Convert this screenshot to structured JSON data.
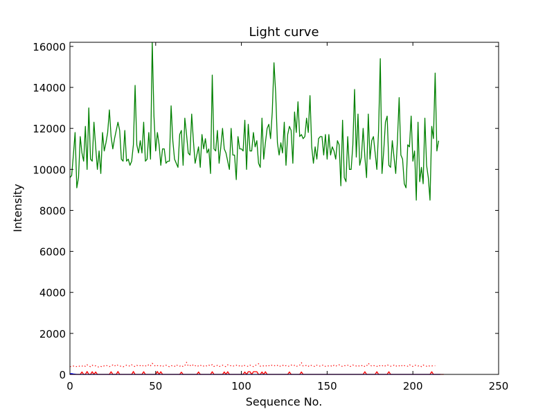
{
  "chart_data": {
    "type": "line",
    "title": "Light curve",
    "xlabel": "Sequence No.",
    "ylabel": "Intensity",
    "xlim": [
      0,
      250
    ],
    "ylim": [
      0,
      16200
    ],
    "x_ticks": [
      "0",
      "50",
      "100",
      "150",
      "200",
      "250"
    ],
    "y_ticks": [
      "0",
      "2000",
      "4000",
      "6000",
      "8000",
      "10000",
      "12000",
      "14000",
      "16000"
    ],
    "x_tick_values": [
      0,
      50,
      100,
      150,
      200,
      250
    ],
    "y_tick_values": [
      0,
      2000,
      4000,
      6000,
      8000,
      10000,
      12000,
      14000,
      16000
    ],
    "grid": false,
    "colors": {
      "green": "#008000",
      "red": "#ff0000",
      "blue": "#0000ff"
    },
    "series": [
      {
        "style": "solid",
        "color": "green",
        "x_start": 0,
        "values": [
          9600,
          9700,
          10700,
          11800,
          9100,
          9600,
          11600,
          10800,
          10400,
          12100,
          10000,
          13000,
          10500,
          10400,
          12300,
          11100,
          10000,
          10900,
          9800,
          11800,
          10900,
          11300,
          11800,
          12900,
          11600,
          11000,
          11500,
          11900,
          12300,
          11900,
          10500,
          10400,
          11900,
          10400,
          10500,
          10200,
          10400,
          11200,
          14100,
          11200,
          10800,
          11400,
          10800,
          12300,
          10400,
          10500,
          11800,
          10500,
          16200,
          12600,
          10900,
          11800,
          11200,
          10200,
          11000,
          11000,
          10300,
          10400,
          10400,
          13100,
          11400,
          10500,
          10300,
          10100,
          11700,
          11900,
          10200,
          12500,
          11700,
          10800,
          10700,
          12700,
          11400,
          10300,
          10700,
          11100,
          10100,
          11700,
          11000,
          11500,
          10800,
          11000,
          9800,
          14600,
          11000,
          10900,
          11900,
          10300,
          11100,
          12000,
          11000,
          10800,
          10400,
          10000,
          12000,
          10700,
          10700,
          9500,
          11600,
          11000,
          11000,
          10900,
          12400,
          10000,
          12200,
          10900,
          10900,
          11800,
          11100,
          11400,
          10300,
          10100,
          12500,
          10500,
          11300,
          12000,
          12200,
          11500,
          12800,
          15200,
          13700,
          11300,
          10700,
          11300,
          10800,
          12300,
          10200,
          11700,
          12100,
          11900,
          10300,
          12800,
          11800,
          13300,
          11600,
          11700,
          11500,
          11600,
          12500,
          11800,
          13600,
          11100,
          10300,
          11100,
          10500,
          11500,
          11600,
          11600,
          10700,
          11700,
          10500,
          11700,
          10700,
          11100,
          10900,
          10500,
          11400,
          11200,
          9200,
          12400,
          9600,
          9400,
          11600,
          10000,
          10000,
          11200,
          13900,
          10600,
          12700,
          10200,
          10600,
          12000,
          10600,
          9600,
          12700,
          10500,
          11400,
          11600,
          10800,
          10000,
          11900,
          15400,
          9800,
          10900,
          12300,
          12600,
          10200,
          10100,
          11400,
          10600,
          9800,
          11400,
          13500,
          10700,
          10500,
          9300,
          9100,
          11200,
          11100,
          12600,
          10400,
          10900,
          8500,
          12300,
          9400,
          10100,
          9300,
          12500,
          10200,
          9600,
          8500,
          12100,
          11500,
          14700,
          10900,
          11400
        ]
      },
      {
        "style": "dotted",
        "color": "red",
        "x_start": 0,
        "values": [
          380,
          390,
          410,
          370,
          390,
          420,
          380,
          400,
          440,
          390,
          470,
          410,
          380,
          450,
          400,
          420,
          380,
          350,
          390,
          370,
          420,
          450,
          410,
          380,
          430,
          460,
          400,
          480,
          440,
          420,
          390,
          370,
          410,
          450,
          430,
          400,
          470,
          420,
          380,
          440,
          410,
          430,
          390,
          450,
          420,
          400,
          480,
          420,
          540,
          460,
          390,
          430,
          400,
          420,
          380,
          440,
          450,
          400,
          380,
          430,
          410,
          390,
          470,
          420,
          400,
          440,
          380,
          430,
          590,
          410,
          440,
          400,
          480,
          430,
          380,
          420,
          460,
          390,
          410,
          440,
          400,
          450,
          420,
          480,
          390,
          410,
          440,
          380,
          420,
          450,
          400,
          380,
          470,
          430,
          420,
          390,
          440,
          450,
          400,
          420,
          380,
          460,
          430,
          410,
          390,
          450,
          420,
          380,
          440,
          460,
          520,
          400,
          430,
          410,
          390,
          450,
          420,
          470,
          430,
          410,
          460,
          440,
          380,
          420,
          450,
          400,
          430,
          390,
          410,
          460,
          420,
          440,
          380,
          430,
          450,
          570,
          410,
          420,
          440,
          390,
          460,
          430,
          410,
          380,
          450,
          420,
          400,
          440,
          460,
          390,
          420,
          410,
          430,
          380,
          450,
          400,
          440,
          470,
          410,
          390,
          430,
          420,
          450,
          380,
          400,
          460,
          430,
          410,
          440,
          390,
          420,
          450,
          380,
          410,
          540,
          460,
          400,
          430,
          420,
          390,
          450,
          410,
          440,
          380,
          420,
          470,
          430,
          400,
          410,
          450,
          390,
          440,
          420,
          380,
          460,
          430,
          410,
          400,
          480,
          420,
          390,
          450,
          440,
          410,
          430,
          380,
          460,
          420,
          400,
          440,
          390,
          410,
          430,
          420
        ]
      },
      {
        "style": "solid",
        "color": "red",
        "x_start": 0,
        "values": [
          0,
          0,
          0,
          0,
          0,
          0,
          0,
          120,
          0,
          0,
          140,
          0,
          0,
          130,
          0,
          120,
          0,
          0,
          0,
          0,
          0,
          0,
          0,
          0,
          130,
          0,
          0,
          0,
          140,
          0,
          0,
          0,
          0,
          0,
          0,
          0,
          0,
          140,
          0,
          0,
          0,
          0,
          0,
          130,
          0,
          0,
          0,
          0,
          0,
          0,
          0,
          140,
          0,
          130,
          0,
          0,
          0,
          0,
          0,
          0,
          0,
          0,
          0,
          0,
          0,
          110,
          0,
          0,
          0,
          0,
          0,
          0,
          0,
          0,
          0,
          120,
          0,
          0,
          0,
          0,
          0,
          0,
          0,
          130,
          0,
          0,
          0,
          0,
          0,
          0,
          120,
          0,
          130,
          0,
          0,
          0,
          0,
          0,
          0,
          0,
          0,
          0,
          120,
          0,
          130,
          130,
          0,
          130,
          130,
          130,
          0,
          0,
          120,
          0,
          130,
          0,
          0,
          0,
          0,
          0,
          0,
          0,
          0,
          0,
          0,
          0,
          0,
          0,
          120,
          0,
          0,
          0,
          0,
          0,
          0,
          120,
          0,
          0,
          0,
          0,
          0,
          0,
          0,
          0,
          0,
          0,
          0,
          0,
          0,
          0,
          0,
          0,
          0,
          0,
          0,
          0,
          0,
          0,
          0,
          0,
          0,
          0,
          0,
          0,
          0,
          0,
          0,
          0,
          0,
          0,
          0,
          0,
          130,
          0,
          0,
          0,
          0,
          0,
          0,
          130,
          0,
          0,
          0,
          0,
          0,
          0,
          130,
          0,
          0,
          0,
          0,
          0,
          0,
          0,
          0,
          0,
          0,
          0,
          0,
          0,
          0,
          0,
          0,
          0,
          0,
          0,
          0,
          0,
          0,
          0,
          0,
          130,
          0,
          0,
          0,
          0,
          0,
          0,
          0
        ]
      },
      {
        "style": "solid",
        "color": "blue",
        "x_start": 0,
        "values": [
          30,
          40,
          20,
          10,
          0,
          0,
          0,
          0,
          0,
          0,
          0,
          0,
          0,
          0,
          0,
          0,
          0,
          0,
          0,
          0,
          0,
          0,
          0,
          0,
          0,
          0,
          0,
          0,
          0,
          0,
          0,
          0,
          0,
          0,
          0,
          0,
          0,
          0,
          0,
          0,
          0,
          0,
          0,
          0,
          0,
          0,
          0,
          0,
          0,
          0,
          0,
          0,
          0,
          0,
          0,
          0,
          0,
          0,
          0,
          0,
          0,
          0,
          0,
          0,
          0,
          0,
          0,
          0,
          0,
          0,
          0,
          0,
          0,
          0,
          0,
          0,
          0,
          0,
          0,
          0,
          0,
          0,
          0,
          0,
          0,
          0,
          0,
          0,
          0,
          0,
          0,
          0,
          0,
          0,
          0,
          0,
          0,
          0,
          0,
          0,
          0,
          0,
          0,
          0,
          0,
          0,
          0,
          0,
          0,
          0,
          0,
          0,
          0,
          0,
          0,
          0,
          0,
          0,
          0,
          0,
          0,
          0,
          0,
          0,
          0,
          0,
          0,
          0,
          0,
          0,
          0,
          0,
          0,
          0,
          0,
          0,
          0,
          0,
          0,
          0,
          0,
          0,
          0,
          0,
          0,
          0,
          0,
          0,
          0,
          0,
          0,
          0,
          0,
          0,
          0,
          0,
          0,
          0,
          0,
          0,
          0,
          0,
          0,
          0,
          0,
          0,
          0,
          0,
          0,
          0,
          0,
          0,
          0,
          0,
          0,
          0,
          0,
          0,
          0,
          0,
          0,
          0,
          0,
          0,
          0,
          0,
          0,
          0,
          0,
          0,
          0,
          0,
          0,
          0,
          0,
          0,
          0,
          0,
          0,
          0,
          0,
          0,
          0,
          0,
          0,
          0,
          0,
          0,
          0,
          0,
          0,
          0,
          0,
          0,
          0,
          0,
          0
        ]
      }
    ]
  }
}
